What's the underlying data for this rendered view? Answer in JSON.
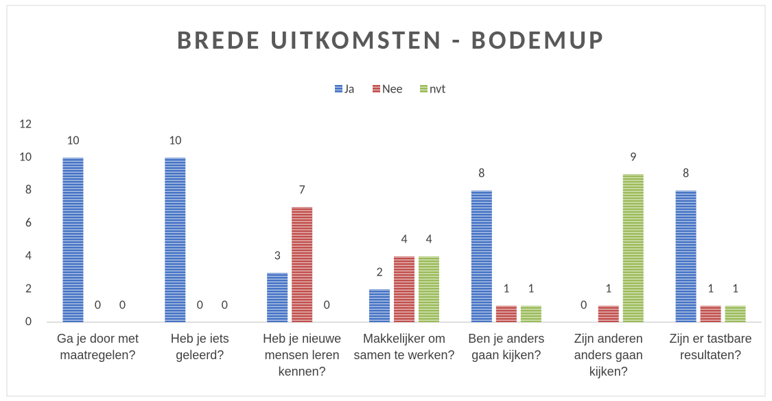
{
  "chart_data": {
    "type": "bar",
    "title": "BREDE UITKOMSTEN - BODEMUP",
    "categories": [
      "Ga je door met maatregelen?",
      "Heb je iets geleerd?",
      "Heb je nieuwe mensen leren kennen?",
      "Makkelijker om samen te werken?",
      "Ben je anders gaan kijken?",
      "Zijn anderen anders gaan kijken?",
      "Zijn er tastbare resultaten?"
    ],
    "series": [
      {
        "name": "Ja",
        "color": "#4472c4",
        "values": [
          10,
          10,
          3,
          2,
          8,
          0,
          8
        ]
      },
      {
        "name": "Nee",
        "color": "#c0504d",
        "values": [
          0,
          0,
          7,
          4,
          1,
          1,
          1
        ]
      },
      {
        "name": "nvt",
        "color": "#9bbb59",
        "values": [
          0,
          0,
          0,
          4,
          1,
          9,
          1
        ]
      }
    ],
    "ylim": [
      0,
      12
    ],
    "yticks": [
      0,
      2,
      4,
      6,
      8,
      10,
      12
    ],
    "grid": false,
    "legend": "top"
  }
}
